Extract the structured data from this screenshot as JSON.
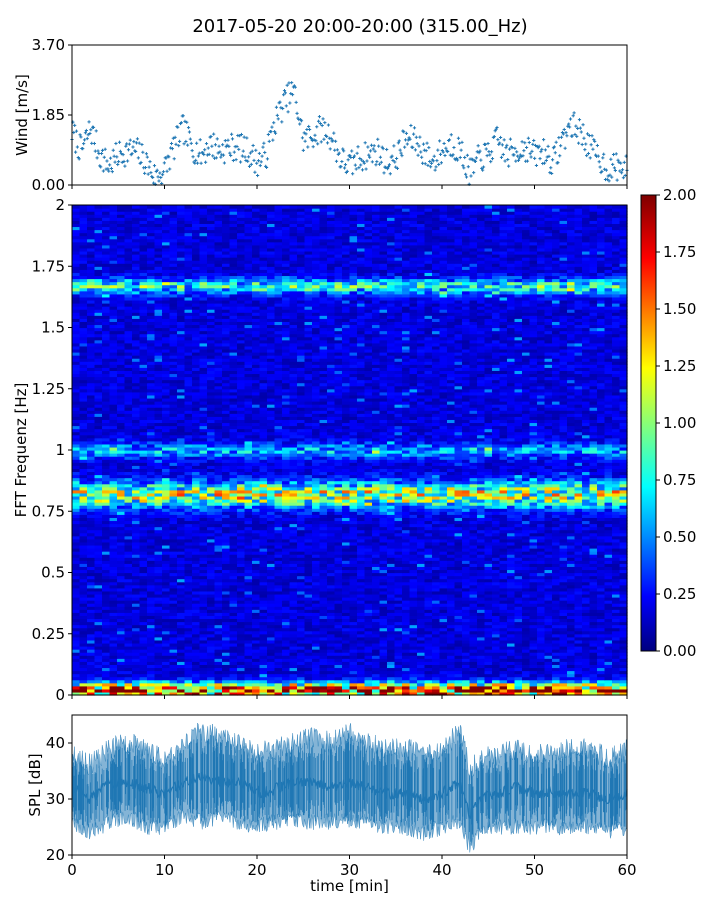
{
  "title": "2017-05-20 20:00-20:00 (315.00_Hz)",
  "colors": {
    "series": "#1f77b4",
    "frame": "#000000",
    "colormap": "jet",
    "background": "#ffffff"
  },
  "chart_data": [
    {
      "id": "wind",
      "type": "scatter",
      "marker": "plus",
      "ylabel": "Wind [m/s]",
      "xlim": [
        0,
        60
      ],
      "ylim": [
        0,
        3.7
      ],
      "yticks": [
        0.0,
        1.85,
        3.7
      ],
      "ytick_labels": [
        "0.00",
        "1.85",
        "3.70"
      ],
      "xtick_labels_shown": false,
      "x": [
        0,
        1,
        2,
        3,
        4,
        5,
        6,
        7,
        8,
        9,
        10,
        11,
        12,
        13,
        14,
        15,
        16,
        17,
        18,
        19,
        20,
        21,
        22,
        23,
        24,
        25,
        26,
        27,
        28,
        29,
        30,
        31,
        32,
        33,
        34,
        35,
        36,
        37,
        38,
        39,
        40,
        41,
        42,
        43,
        44,
        45,
        46,
        47,
        48,
        49,
        50,
        51,
        52,
        53,
        54,
        55,
        56,
        57,
        58,
        59,
        60
      ],
      "y": [
        1.4,
        0.9,
        1.5,
        0.8,
        0.5,
        0.8,
        0.9,
        0.9,
        0.6,
        0.2,
        0.4,
        1.0,
        1.5,
        1.0,
        0.8,
        1.1,
        0.9,
        1.0,
        1.0,
        0.9,
        0.6,
        0.8,
        1.7,
        2.2,
        2.5,
        1.2,
        1.3,
        1.5,
        1.3,
        0.7,
        0.5,
        0.7,
        0.8,
        0.9,
        0.6,
        0.7,
        1.2,
        1.2,
        0.9,
        0.6,
        0.9,
        1.1,
        0.9,
        0.3,
        0.7,
        0.8,
        1.2,
        0.8,
        0.9,
        1.0,
        0.8,
        0.9,
        0.6,
        1.2,
        1.6,
        1.4,
        1.0,
        0.7,
        0.4,
        0.5,
        0.4
      ]
    },
    {
      "id": "spectrogram",
      "type": "heatmap",
      "ylabel": "FFT Frequenz [Hz]",
      "xlim": [
        0,
        60
      ],
      "ylim": [
        0,
        2
      ],
      "yticks": [
        0,
        0.25,
        0.5,
        0.75,
        1,
        1.25,
        1.5,
        1.75,
        2
      ],
      "ytick_labels": [
        "0",
        "0.25",
        "0.5",
        "0.75",
        "1",
        "1.25",
        "1.5",
        "1.75",
        "2"
      ],
      "xtick_labels_shown": false,
      "clim": [
        0,
        2
      ],
      "colorbar_ticks": [
        0,
        0.25,
        0.5,
        0.75,
        1.0,
        1.25,
        1.5,
        1.75,
        2.0
      ],
      "colorbar_tick_labels": [
        "0.00",
        "0.25",
        "0.50",
        "0.75",
        "1.00",
        "1.25",
        "1.50",
        "1.75",
        "2.00"
      ],
      "background_level": 0.18,
      "bands": [
        {
          "freq": 0.02,
          "width": 0.03,
          "level": 1.5
        },
        {
          "freq": 0.82,
          "width": 0.05,
          "level": 0.9
        },
        {
          "freq": 1.67,
          "width": 0.03,
          "level": 0.6
        },
        {
          "freq": 1.0,
          "width": 0.03,
          "level": 0.4
        }
      ]
    },
    {
      "id": "spl",
      "type": "area",
      "ylabel": "SPL [dB]",
      "xlabel": "time [min]",
      "xlim": [
        0,
        60
      ],
      "ylim": [
        20,
        45
      ],
      "yticks": [
        20,
        30,
        40
      ],
      "ytick_labels": [
        "20",
        "30",
        "40"
      ],
      "xticks": [
        0,
        10,
        20,
        30,
        40,
        50,
        60
      ],
      "xtick_labels": [
        "0",
        "10",
        "20",
        "30",
        "40",
        "50",
        "60"
      ],
      "x": [
        0,
        2,
        4,
        6,
        8,
        10,
        12,
        14,
        16,
        18,
        20,
        22,
        24,
        26,
        28,
        30,
        32,
        34,
        36,
        38,
        40,
        42,
        43,
        44,
        46,
        48,
        50,
        52,
        54,
        56,
        58,
        60
      ],
      "y_low": [
        26,
        24,
        26,
        27,
        25,
        25,
        27,
        26,
        27,
        26,
        25,
        26,
        26,
        26,
        26,
        26,
        26,
        25,
        25,
        24,
        25,
        26,
        21,
        24,
        25,
        25,
        25,
        25,
        25,
        25,
        24,
        25
      ],
      "y_high": [
        38,
        36,
        39,
        40,
        39,
        37,
        40,
        42,
        41,
        40,
        38,
        39,
        40,
        41,
        40,
        42,
        40,
        39,
        39,
        38,
        39,
        42,
        35,
        37,
        38,
        39,
        38,
        38,
        39,
        39,
        37,
        39
      ],
      "y_mid": [
        32,
        30,
        33,
        33,
        32,
        31,
        33,
        34,
        33,
        33,
        31,
        32,
        33,
        33,
        32,
        33,
        32,
        31,
        31,
        30,
        31,
        33,
        27,
        30,
        31,
        32,
        31,
        31,
        31,
        31,
        30,
        31
      ]
    }
  ]
}
